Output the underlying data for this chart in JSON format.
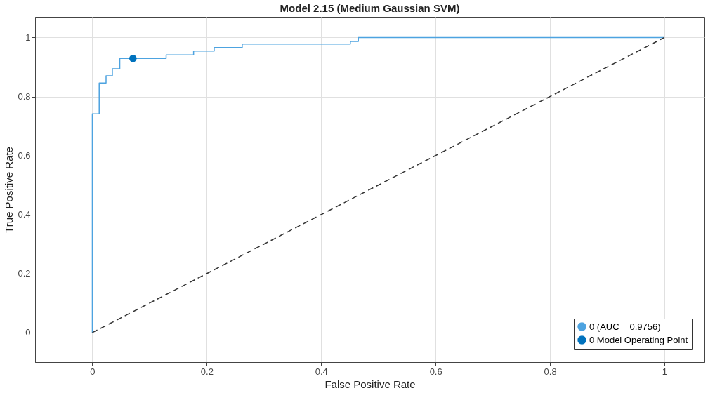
{
  "chart_data": {
    "type": "line",
    "title": "Model 2.15 (Medium Gaussian SVM)",
    "xlabel": "False Positive Rate",
    "ylabel": "True Positive Rate",
    "xlim": [
      -0.1,
      1.07
    ],
    "ylim": [
      -0.1,
      1.07
    ],
    "xticks": [
      0,
      0.2,
      0.4,
      0.6,
      0.8,
      1
    ],
    "yticks": [
      0,
      0.2,
      0.4,
      0.6,
      0.8,
      1
    ],
    "grid": true,
    "legend": "bottom right",
    "series": [
      {
        "name": "0 (AUC = 0.9756)",
        "type": "step",
        "color": "#4da3e0",
        "line_style": "solid",
        "x": [
          0,
          0,
          0.012,
          0.024,
          0.035,
          0.048,
          0.129,
          0.177,
          0.213,
          0.262,
          0.451,
          0.465,
          1
        ],
        "values": [
          0,
          0.741,
          0.846,
          0.87,
          0.894,
          0.929,
          0.941,
          0.954,
          0.966,
          0.978,
          0.987,
          1,
          1
        ]
      },
      {
        "color": "#333333",
        "line_style": "dashed",
        "x": [
          0,
          1
        ],
        "values": [
          0,
          1
        ]
      },
      {
        "name": "0 Model Operating Point",
        "type": "scatter",
        "color": "#0072bd",
        "marker": "circle",
        "x": [
          0.071
        ],
        "values": [
          0.929
        ]
      }
    ]
  }
}
